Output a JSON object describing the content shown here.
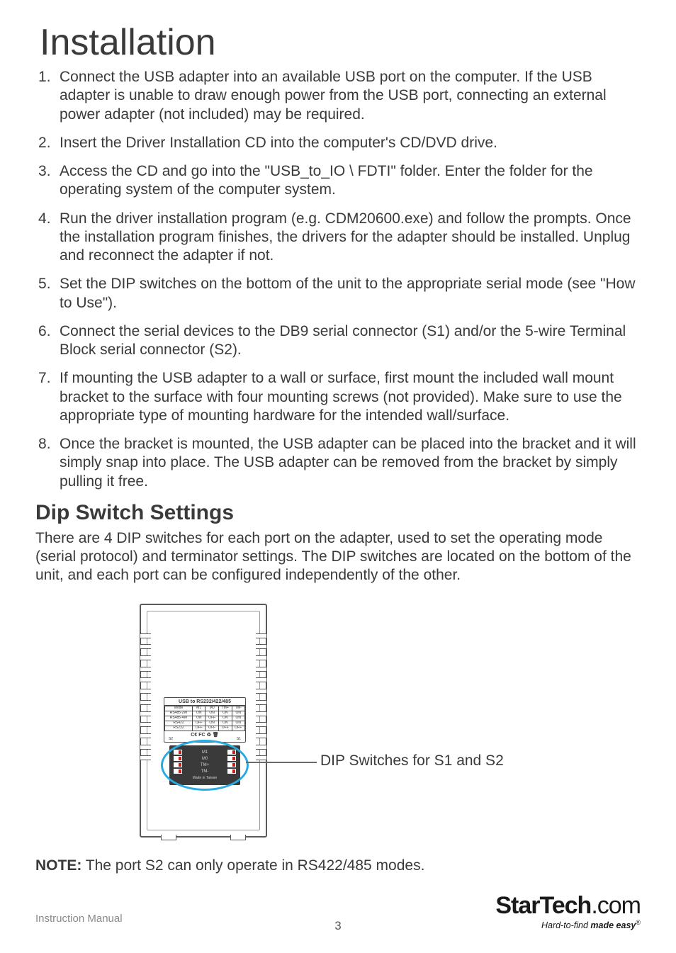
{
  "title": "Installation",
  "steps": [
    "Connect the USB adapter into an available USB port on the computer.  If the USB adapter is unable to draw enough power from the USB port, connecting an external power adapter (not included) may be required.",
    "Insert the Driver Installation CD into the computer's CD/DVD drive.",
    "Access the CD and go into the \"USB_to_IO \\ FDTI\" folder.  Enter the folder for the operating system of the computer system.",
    "Run the driver installation program (e.g. CDM20600.exe) and follow the prompts.  Once the installation program finishes, the drivers for the adapter should be installed.  Unplug and reconnect the adapter if not.",
    "Set the DIP switches on the bottom of the unit to the appropriate serial mode (see \"How to Use\").",
    "Connect the serial devices to the DB9 serial connector (S1) and/or the 5-wire Terminal Block serial connector (S2).",
    "If mounting the USB adapter to a wall or surface, first mount the included wall mount bracket to the surface with four mounting screws (not provided).  Make sure to use the appropriate type of mounting hardware for the intended wall/surface.",
    "Once the bracket is mounted, the USB adapter can be placed into the bracket and it will simply snap into place. The USB adapter can be removed from the bracket by simply pulling it free."
  ],
  "section2_title": "Dip Switch Settings",
  "section2_body": "There are 4 DIP switches for each port on the adapter, used to set the operating mode (serial protocol) and terminator settings.  The DIP switches are located on the bottom of the unit, and each port can be configured independently of the other.",
  "diagram": {
    "label_title": "USB to RS232/422/485",
    "table": {
      "headers": [
        "Mode",
        "M1",
        "M0",
        "TM+",
        "TM-"
      ],
      "rows": [
        [
          "RS485-2W",
          "ON",
          "ON",
          "ON",
          "ON"
        ],
        [
          "RS485-4W",
          "ON",
          "OFF",
          "ON",
          "ON"
        ],
        [
          "RS422",
          "OFF",
          "ON",
          "ON",
          "ON"
        ],
        [
          "RS232",
          "OFF",
          "OFF",
          "OFF",
          "OFF"
        ]
      ]
    },
    "cert": "CE FC",
    "port_left": "S2",
    "port_right": "S1",
    "dip_labels": [
      "M1",
      "M0",
      "TM+",
      "TM-"
    ],
    "made_in": "Made in Taiwan",
    "callout": "DIP Switches for S1 and S2",
    "highlight_color": "#29abe2"
  },
  "note_label": "NOTE:",
  "note_text": " The port S2 can only operate in RS422/485 modes.",
  "footer": {
    "left": "Instruction Manual",
    "page": "3",
    "logo_main_a": "StarTech",
    "logo_main_b": ".com",
    "logo_sub_plain": "Hard-to-find ",
    "logo_sub_bold": "made easy",
    "logo_reg": "®"
  },
  "colors": {
    "text": "#3a3a3a",
    "muted": "#8a8a8a",
    "line": "#5a5a5a",
    "dip_bg": "#3a3a3a",
    "dip_toggle": "#c02020"
  }
}
